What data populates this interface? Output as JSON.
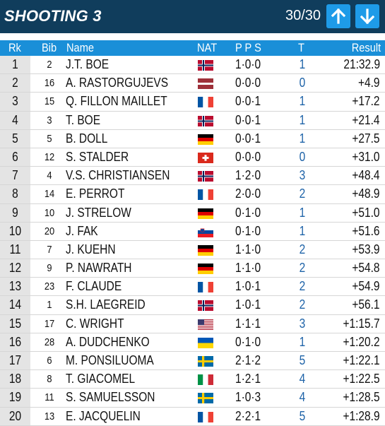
{
  "header": {
    "title": "SHOOTING 3",
    "page_counter": "30/30",
    "up_icon": "arrow-up-icon",
    "down_icon": "arrow-down-icon",
    "bg_color": "#103d5c",
    "button_color": "#1e9be8"
  },
  "columns": {
    "rank": "Rk",
    "bib": "Bib",
    "name": "Name",
    "nat": "NAT",
    "pps": "P P S",
    "t": "T",
    "result": "Result",
    "bg_color": "#1a8fd8"
  },
  "rows": [
    {
      "rank": "1",
      "bib": "2",
      "name": "J.T. BOE",
      "nat": "NOR",
      "pps": "1·0·0",
      "t": "1",
      "result": "21:32.9"
    },
    {
      "rank": "2",
      "bib": "16",
      "name": "A. RASTORGUJEVS",
      "nat": "LAT",
      "pps": "0·0·0",
      "t": "0",
      "result": "+4.9"
    },
    {
      "rank": "3",
      "bib": "15",
      "name": "Q. FILLON MAILLET",
      "nat": "FRA",
      "pps": "0·0·1",
      "t": "1",
      "result": "+17.2"
    },
    {
      "rank": "4",
      "bib": "3",
      "name": "T. BOE",
      "nat": "NOR",
      "pps": "0·0·1",
      "t": "1",
      "result": "+21.4"
    },
    {
      "rank": "5",
      "bib": "5",
      "name": "B. DOLL",
      "nat": "GER",
      "pps": "0·0·1",
      "t": "1",
      "result": "+27.5"
    },
    {
      "rank": "6",
      "bib": "12",
      "name": "S. STALDER",
      "nat": "SUI",
      "pps": "0·0·0",
      "t": "0",
      "result": "+31.0"
    },
    {
      "rank": "7",
      "bib": "4",
      "name": "V.S. CHRISTIANSEN",
      "nat": "NOR",
      "pps": "1·2·0",
      "t": "3",
      "result": "+48.4"
    },
    {
      "rank": "8",
      "bib": "14",
      "name": "E. PERROT",
      "nat": "FRA",
      "pps": "2·0·0",
      "t": "2",
      "result": "+48.9"
    },
    {
      "rank": "9",
      "bib": "10",
      "name": "J. STRELOW",
      "nat": "GER",
      "pps": "0·1·0",
      "t": "1",
      "result": "+51.0"
    },
    {
      "rank": "10",
      "bib": "20",
      "name": "J. FAK",
      "nat": "SLO",
      "pps": "0·1·0",
      "t": "1",
      "result": "+51.6"
    },
    {
      "rank": "11",
      "bib": "7",
      "name": "J. KUEHN",
      "nat": "GER",
      "pps": "1·1·0",
      "t": "2",
      "result": "+53.9"
    },
    {
      "rank": "12",
      "bib": "9",
      "name": "P. NAWRATH",
      "nat": "GER",
      "pps": "1·1·0",
      "t": "2",
      "result": "+54.8"
    },
    {
      "rank": "13",
      "bib": "23",
      "name": "F. CLAUDE",
      "nat": "FRA",
      "pps": "1·0·1",
      "t": "2",
      "result": "+54.9"
    },
    {
      "rank": "14",
      "bib": "1",
      "name": "S.H. LAEGREID",
      "nat": "NOR",
      "pps": "1·0·1",
      "t": "2",
      "result": "+56.1"
    },
    {
      "rank": "15",
      "bib": "17",
      "name": "C. WRIGHT",
      "nat": "USA",
      "pps": "1·1·1",
      "t": "3",
      "result": "+1:15.7"
    },
    {
      "rank": "16",
      "bib": "28",
      "name": "A. DUDCHENKO",
      "nat": "UKR",
      "pps": "0·1·0",
      "t": "1",
      "result": "+1:20.2"
    },
    {
      "rank": "17",
      "bib": "6",
      "name": "M. PONSILUOMA",
      "nat": "SWE",
      "pps": "2·1·2",
      "t": "5",
      "result": "+1:22.1"
    },
    {
      "rank": "18",
      "bib": "8",
      "name": "T. GIACOMEL",
      "nat": "ITA",
      "pps": "1·2·1",
      "t": "4",
      "result": "+1:22.5"
    },
    {
      "rank": "19",
      "bib": "11",
      "name": "S. SAMUELSSON",
      "nat": "SWE",
      "pps": "1·0·3",
      "t": "4",
      "result": "+1:28.5"
    },
    {
      "rank": "20",
      "bib": "13",
      "name": "E. JACQUELIN",
      "nat": "FRA",
      "pps": "2·2·1",
      "t": "5",
      "result": "+1:28.9"
    }
  ]
}
